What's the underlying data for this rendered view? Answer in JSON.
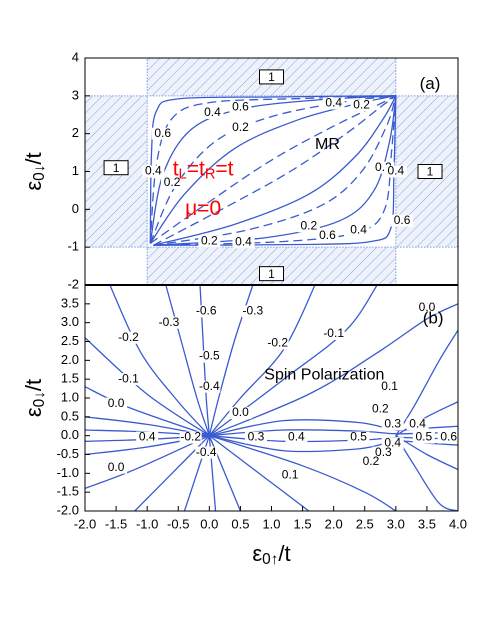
{
  "chart_data": [
    {
      "type": "contour",
      "xlim": [
        -2,
        4
      ],
      "ylim": [
        -2,
        4
      ],
      "yticks": [
        -2,
        -1,
        0,
        1,
        2,
        3,
        4
      ],
      "ylabel": [
        "ε",
        "0↓",
        "/t"
      ],
      "line_color": "#3a5bd0",
      "region_color": "#7f9de0",
      "regions": [
        {
          "value": 1,
          "x": [
            -1,
            3
          ],
          "y": [
            3,
            4
          ],
          "label_at": [
            1,
            3.5
          ]
        },
        {
          "value": 1,
          "x": [
            -1,
            3
          ],
          "y": [
            -2,
            -1
          ],
          "label_at": [
            1,
            -1.7
          ]
        },
        {
          "value": 1,
          "x": [
            -2,
            -1
          ],
          "y": [
            -1,
            3
          ],
          "label_at": [
            -1.5,
            1.1
          ]
        },
        {
          "value": 1,
          "x": [
            3,
            4
          ],
          "y": [
            -1,
            3
          ],
          "label_at": [
            3.55,
            1.0
          ]
        }
      ],
      "contours": [
        {
          "dash": false,
          "x": [
            -0.95,
            -0.93,
            -0.85,
            -0.5,
            1,
            3
          ],
          "y": [
            -0.9,
            1.5,
            2.6,
            2.92,
            2.97,
            3
          ]
        },
        {
          "dash": true,
          "x": [
            -0.95,
            -0.85,
            -0.6,
            0,
            1.5,
            3
          ],
          "y": [
            -0.9,
            1.2,
            2.4,
            2.82,
            2.93,
            3
          ]
        },
        {
          "dash": false,
          "x": [
            -0.95,
            -0.75,
            -0.3,
            0.5,
            1.8,
            3
          ],
          "y": [
            -0.9,
            0.9,
            2.1,
            2.65,
            2.9,
            3
          ]
        },
        {
          "dash": true,
          "x": [
            -0.95,
            -0.55,
            0.1,
            1,
            2.2,
            3
          ],
          "y": [
            -0.9,
            0.6,
            1.8,
            2.45,
            2.85,
            3
          ]
        },
        {
          "dash": false,
          "x": [
            -0.95,
            -0.4,
            0.4,
            1.4,
            2.4,
            3
          ],
          "y": [
            -0.9,
            0.4,
            1.6,
            2.35,
            2.8,
            3
          ]
        },
        {
          "dash": true,
          "x": [
            -0.95,
            0,
            1,
            2,
            2.7,
            3
          ],
          "y": [
            -0.9,
            0.2,
            1.3,
            2.2,
            2.75,
            3
          ]
        },
        {
          "dash": false,
          "x": [
            -0.9,
            1.5,
            2.6,
            2.92,
            2.97,
            3
          ],
          "y": [
            -0.95,
            -0.93,
            -0.85,
            -0.5,
            1,
            3
          ]
        },
        {
          "dash": true,
          "x": [
            -0.9,
            1.2,
            2.4,
            2.82,
            2.93,
            3
          ],
          "y": [
            -0.95,
            -0.85,
            -0.6,
            0,
            1.5,
            3
          ]
        },
        {
          "dash": false,
          "x": [
            -0.9,
            0.9,
            2.1,
            2.65,
            2.9,
            3
          ],
          "y": [
            -0.95,
            -0.75,
            -0.3,
            0.5,
            1.8,
            3
          ]
        },
        {
          "dash": true,
          "x": [
            -0.9,
            0.6,
            1.8,
            2.45,
            2.85,
            3
          ],
          "y": [
            -0.95,
            -0.55,
            0.1,
            1,
            2.2,
            3
          ]
        },
        {
          "dash": false,
          "x": [
            -0.9,
            0.4,
            1.6,
            2.35,
            2.8,
            3
          ],
          "y": [
            -0.95,
            -0.4,
            0.4,
            1.4,
            2.4,
            3
          ]
        },
        {
          "dash": true,
          "x": [
            -0.9,
            0.2,
            1.3,
            2.2,
            2.75,
            3
          ],
          "y": [
            -0.95,
            0,
            1,
            2,
            2.7,
            3
          ]
        }
      ],
      "contour_labels": [
        {
          "value": 0.4,
          "x": 0.05,
          "y": 2.55
        },
        {
          "value": 0.6,
          "x": 0.5,
          "y": 2.7
        },
        {
          "value": 0.2,
          "x": 0.5,
          "y": 2.15
        },
        {
          "value": 0.4,
          "x": 2.0,
          "y": 2.8
        },
        {
          "value": 0.2,
          "x": 2.45,
          "y": 2.75
        },
        {
          "value": 0.6,
          "x": -0.75,
          "y": 2.0
        },
        {
          "value": 0.4,
          "x": -0.9,
          "y": 1.0
        },
        {
          "value": 0.2,
          "x": -0.6,
          "y": 0.7
        },
        {
          "value": 0.2,
          "x": 2.8,
          "y": 1.1
        },
        {
          "value": 0.4,
          "x": 3.0,
          "y": 1.0
        },
        {
          "value": 0.6,
          "x": 3.1,
          "y": -0.3
        },
        {
          "value": 0.2,
          "x": 0.0,
          "y": -0.85
        },
        {
          "value": 0.4,
          "x": 0.55,
          "y": -0.87
        },
        {
          "value": 0.2,
          "x": 1.6,
          "y": -0.45
        },
        {
          "value": 0.6,
          "x": 1.9,
          "y": -0.7
        },
        {
          "value": 0.4,
          "x": 2.4,
          "y": -0.55
        }
      ],
      "annotations": [
        {
          "text": "(a)",
          "x": 3.55,
          "y": 3.3,
          "color": "#000000",
          "size": 17
        },
        {
          "text": "MR",
          "x": 1.9,
          "y": 1.7,
          "color": "#000000",
          "size": 16
        },
        {
          "parts": [
            "t",
            "L",
            "=t",
            "R",
            "=t"
          ],
          "x": -0.1,
          "y": 1.05,
          "color": "#ff0000",
          "size": 21
        },
        {
          "text": "μ=0",
          "x": -0.1,
          "y": 0.0,
          "color": "#ff0000",
          "size": 21
        }
      ]
    },
    {
      "type": "contour",
      "xlim": [
        -2,
        4
      ],
      "ylim": [
        -2,
        4
      ],
      "xticks": [
        {
          "value": -2,
          "label": "-2.0"
        },
        -1.5,
        {
          "value": -1,
          "label": "-1.0"
        },
        -0.5,
        {
          "value": 0,
          "label": "0.0"
        },
        0.5,
        {
          "value": 1,
          "label": "1.0"
        },
        1.5,
        {
          "value": 2,
          "label": "2.0"
        },
        2.5,
        {
          "value": 3,
          "label": "3.0"
        },
        3.5,
        {
          "value": 4,
          "label": "4.0"
        }
      ],
      "yticks": [
        {
          "value": -2,
          "label": "-2.0"
        },
        -1.5,
        {
          "value": -1,
          "label": "-1.0"
        },
        -0.5,
        {
          "value": 0,
          "label": "0.0"
        },
        0.5,
        {
          "value": 1,
          "label": "1.0"
        },
        1.5,
        {
          "value": 2,
          "label": "2.0"
        },
        2.5,
        {
          "value": 3,
          "label": "3.0"
        },
        3.5
      ],
      "xlabel": [
        "ε",
        "0↑",
        "/t"
      ],
      "ylabel": [
        "ε",
        "0↓",
        "/t"
      ],
      "line_color": "#3a5bd0",
      "contours": [
        {
          "x": [
            0,
            -0.05,
            -0.1,
            -0.15
          ],
          "y": [
            0,
            1,
            2.5,
            4
          ]
        },
        {
          "x": [
            0,
            -0.2,
            -0.45,
            -0.7
          ],
          "y": [
            0,
            1,
            2.5,
            4
          ]
        },
        {
          "x": [
            0,
            0.15,
            0.4,
            0.7
          ],
          "y": [
            0,
            1,
            2.5,
            4
          ]
        },
        {
          "x": [
            0,
            -0.5,
            -1.1,
            -1.6
          ],
          "y": [
            0,
            0.9,
            2.2,
            4
          ]
        },
        {
          "x": [
            0,
            0.5,
            1.2,
            1.7
          ],
          "y": [
            0,
            1,
            2.3,
            4
          ]
        },
        {
          "x": [
            0,
            -1,
            -2
          ],
          "y": [
            0,
            1.1,
            2.6
          ]
        },
        {
          "x": [
            0,
            1.2,
            2.2,
            2.7
          ],
          "y": [
            0,
            1.5,
            2.8,
            4
          ]
        },
        {
          "x": [
            0,
            -1.3,
            -2
          ],
          "y": [
            0,
            0.75,
            1.3
          ]
        },
        {
          "x": [
            0,
            1.6,
            2.7,
            3.5,
            4
          ],
          "y": [
            0,
            1.1,
            2.2,
            3.1,
            3.5
          ]
        },
        {
          "x": [
            0,
            -1,
            -2
          ],
          "y": [
            0,
            0.3,
            0.5
          ]
        },
        {
          "x": [
            0,
            -1,
            -2
          ],
          "y": [
            0,
            0.1,
            0.15
          ]
        },
        {
          "x": [
            0,
            -1,
            -2
          ],
          "y": [
            0,
            -0.1,
            -0.15
          ]
        },
        {
          "x": [
            0,
            -1,
            -2
          ],
          "y": [
            0,
            -0.3,
            -0.5
          ]
        },
        {
          "x": [
            0,
            0.05,
            0.1
          ],
          "y": [
            0,
            -1,
            -2
          ]
        },
        {
          "x": [
            0,
            -0.2,
            -0.4
          ],
          "y": [
            0,
            -1,
            -2
          ]
        },
        {
          "x": [
            0,
            0.25,
            0.5
          ],
          "y": [
            0,
            -1,
            -2
          ]
        },
        {
          "x": [
            0,
            -0.6,
            -1.2
          ],
          "y": [
            0,
            -1,
            -2
          ]
        },
        {
          "x": [
            0,
            0.8,
            1.6
          ],
          "y": [
            0,
            -1,
            -2
          ]
        },
        {
          "x": [
            0,
            -1.2,
            -2
          ],
          "y": [
            0,
            -0.9,
            -1.4
          ]
        },
        {
          "x": [
            0,
            1.5,
            2.5,
            3
          ],
          "y": [
            0,
            -0.8,
            -1.5,
            -2
          ]
        },
        {
          "x": [
            0,
            1.2,
            2.4,
            3,
            3.5,
            4
          ],
          "y": [
            0,
            0.4,
            0.35,
            0.15,
            0.2,
            0.25
          ]
        },
        {
          "x": [
            0,
            1.2,
            2.4,
            3,
            3.5,
            4
          ],
          "y": [
            0,
            0.15,
            0.12,
            0.05,
            0.07,
            0.08
          ]
        },
        {
          "x": [
            0,
            1.2,
            2.4,
            3,
            3.5,
            4
          ],
          "y": [
            0,
            -0.15,
            -0.12,
            -0.05,
            -0.07,
            -0.08
          ]
        },
        {
          "x": [
            0,
            1.2,
            2.4,
            3,
            3.5,
            4
          ],
          "y": [
            0,
            -0.4,
            -0.35,
            -0.15,
            -0.2,
            -0.25
          ]
        },
        {
          "x": [
            3,
            3.3,
            3.7,
            4
          ],
          "y": [
            0,
            0.8,
            2,
            2.8
          ]
        },
        {
          "x": [
            3,
            3.5,
            4
          ],
          "y": [
            0,
            0.5,
            0.9
          ]
        },
        {
          "x": [
            3,
            3.3,
            3.7,
            4
          ],
          "y": [
            0,
            -0.8,
            -1.8,
            -2
          ]
        },
        {
          "x": [
            3,
            3.5,
            4
          ],
          "y": [
            0,
            -0.5,
            -0.9
          ]
        }
      ],
      "contour_labels": [
        {
          "value": -0.6,
          "x": -0.05,
          "y": 3.3
        },
        {
          "value": -0.3,
          "x": -0.65,
          "y": 3.0
        },
        {
          "value": -0.3,
          "x": 0.7,
          "y": 3.3
        },
        {
          "value": -0.2,
          "x": -1.3,
          "y": 2.6
        },
        {
          "value": -0.5,
          "x": 0.0,
          "y": 2.1
        },
        {
          "value": -0.2,
          "x": 1.1,
          "y": 2.45
        },
        {
          "value": -0.1,
          "x": 2.0,
          "y": 2.7
        },
        {
          "value": 0,
          "label": "0.0",
          "x": 3.5,
          "y": 3.4
        },
        {
          "value": -0.1,
          "x": -1.3,
          "y": 1.5
        },
        {
          "value": 0,
          "label": "0.0",
          "x": -1.5,
          "y": 0.85
        },
        {
          "value": -0.4,
          "x": 0.0,
          "y": 1.3
        },
        {
          "value": 0.1,
          "x": 2.9,
          "y": 1.3
        },
        {
          "value": 0.2,
          "x": 2.75,
          "y": 0.7
        },
        {
          "value": 0.3,
          "x": 2.95,
          "y": 0.3
        },
        {
          "value": 0.4,
          "x": 3.35,
          "y": 0.3
        },
        {
          "value": 0,
          "label": "0.0",
          "x": 0.5,
          "y": 0.6
        },
        {
          "value": 0.4,
          "x": -1.0,
          "y": -0.05
        },
        {
          "value": -0.2,
          "x": -0.3,
          "y": -0.05
        },
        {
          "value": 0.3,
          "x": 0.75,
          "y": -0.05
        },
        {
          "value": 0.4,
          "x": 1.4,
          "y": -0.05
        },
        {
          "value": 0.5,
          "x": 2.4,
          "y": -0.05
        },
        {
          "value": 0.4,
          "x": 2.95,
          "y": -0.2
        },
        {
          "value": 0.3,
          "x": 2.8,
          "y": -0.45
        },
        {
          "value": 0.2,
          "x": 2.6,
          "y": -0.7
        },
        {
          "value": 0.5,
          "x": 3.45,
          "y": -0.05
        },
        {
          "value": 0.6,
          "x": 3.85,
          "y": -0.05
        },
        {
          "value": 0,
          "label": "0.0",
          "x": -1.5,
          "y": -0.85
        },
        {
          "value": -0.4,
          "x": -0.05,
          "y": -0.45
        },
        {
          "value": 0.1,
          "x": 1.3,
          "y": -1.05
        }
      ],
      "annotations": [
        {
          "text": "(b)",
          "x": 3.6,
          "y": 3.1,
          "color": "#000000",
          "size": 17
        },
        {
          "text": "Spin Polarization",
          "x": 1.85,
          "y": 1.6,
          "color": "#000000",
          "size": 16
        }
      ]
    }
  ]
}
